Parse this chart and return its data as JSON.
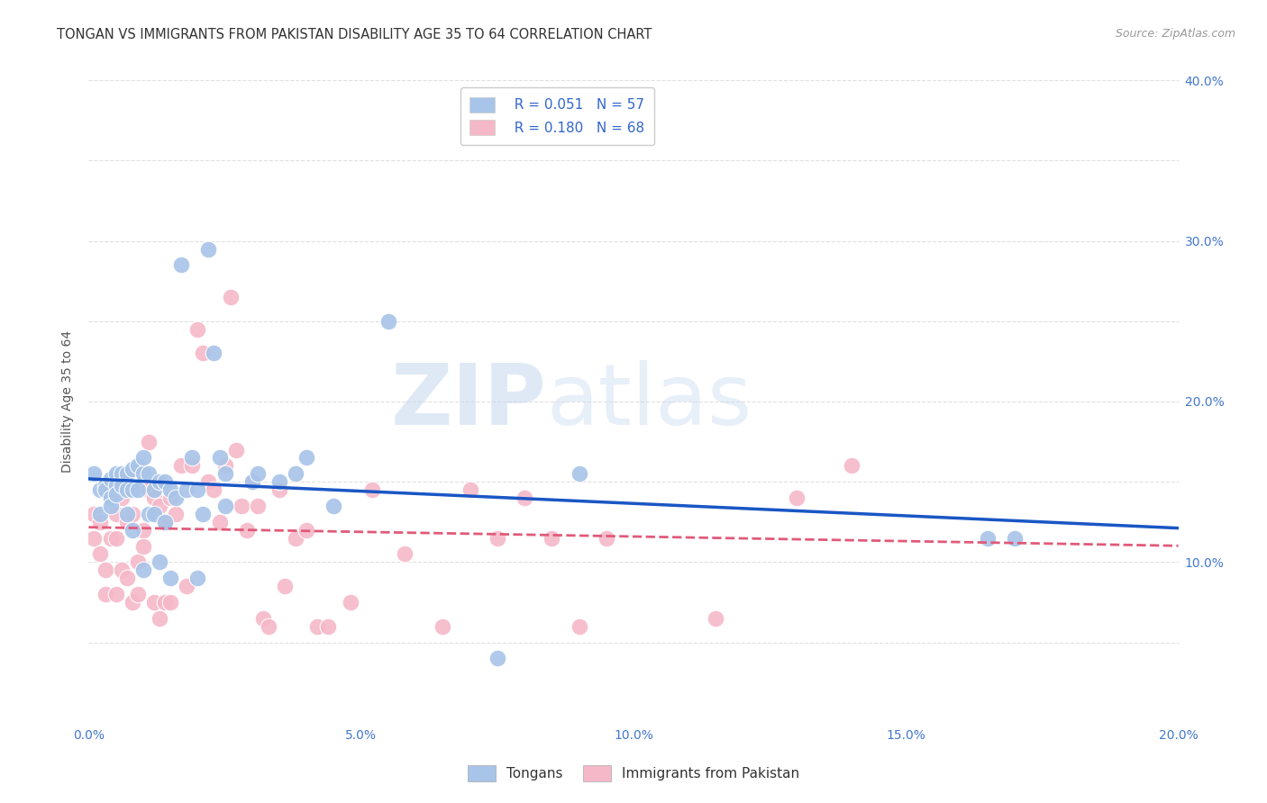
{
  "title": "TONGAN VS IMMIGRANTS FROM PAKISTAN DISABILITY AGE 35 TO 64 CORRELATION CHART",
  "source": "Source: ZipAtlas.com",
  "ylabel": "Disability Age 35 to 64",
  "xlim": [
    0.0,
    0.2
  ],
  "ylim": [
    0.0,
    0.4
  ],
  "xticks": [
    0.0,
    0.025,
    0.05,
    0.075,
    0.1,
    0.125,
    0.15,
    0.175,
    0.2
  ],
  "xtick_labels": [
    "0.0%",
    "",
    "5.0%",
    "",
    "10.0%",
    "",
    "15.0%",
    "",
    "20.0%"
  ],
  "yticks": [
    0.0,
    0.05,
    0.1,
    0.15,
    0.2,
    0.25,
    0.3,
    0.35,
    0.4
  ],
  "ytick_labels": [
    "",
    "",
    "10.0%",
    "",
    "20.0%",
    "",
    "30.0%",
    "",
    "40.0%"
  ],
  "legend_label1": "Tongans",
  "legend_label2": "Immigrants from Pakistan",
  "R1": 0.051,
  "N1": 57,
  "R2": 0.18,
  "N2": 68,
  "color_blue": "#a8c4e8",
  "color_pink": "#f5b8c8",
  "line_color_blue": "#1a56c4",
  "line_color_pink": "#e05a7a",
  "tongans_x": [
    0.001,
    0.002,
    0.002,
    0.003,
    0.003,
    0.004,
    0.004,
    0.004,
    0.005,
    0.005,
    0.005,
    0.006,
    0.006,
    0.007,
    0.007,
    0.007,
    0.008,
    0.008,
    0.008,
    0.009,
    0.009,
    0.01,
    0.01,
    0.01,
    0.011,
    0.011,
    0.012,
    0.012,
    0.013,
    0.013,
    0.014,
    0.014,
    0.015,
    0.015,
    0.016,
    0.017,
    0.018,
    0.019,
    0.02,
    0.02,
    0.021,
    0.022,
    0.023,
    0.024,
    0.025,
    0.025,
    0.03,
    0.031,
    0.035,
    0.038,
    0.04,
    0.045,
    0.055,
    0.075,
    0.09,
    0.165,
    0.17
  ],
  "tongans_y": [
    0.155,
    0.145,
    0.13,
    0.148,
    0.145,
    0.152,
    0.14,
    0.135,
    0.155,
    0.148,
    0.142,
    0.155,
    0.148,
    0.155,
    0.145,
    0.13,
    0.158,
    0.145,
    0.12,
    0.16,
    0.145,
    0.155,
    0.165,
    0.095,
    0.155,
    0.13,
    0.145,
    0.13,
    0.15,
    0.1,
    0.15,
    0.125,
    0.145,
    0.09,
    0.14,
    0.285,
    0.145,
    0.165,
    0.09,
    0.145,
    0.13,
    0.295,
    0.23,
    0.165,
    0.155,
    0.135,
    0.15,
    0.155,
    0.15,
    0.155,
    0.165,
    0.135,
    0.25,
    0.04,
    0.155,
    0.115,
    0.115
  ],
  "pakistan_x": [
    0.001,
    0.001,
    0.002,
    0.002,
    0.003,
    0.003,
    0.004,
    0.004,
    0.005,
    0.005,
    0.005,
    0.006,
    0.006,
    0.007,
    0.007,
    0.008,
    0.008,
    0.009,
    0.009,
    0.01,
    0.01,
    0.011,
    0.011,
    0.012,
    0.012,
    0.013,
    0.013,
    0.014,
    0.014,
    0.015,
    0.015,
    0.016,
    0.017,
    0.018,
    0.019,
    0.02,
    0.021,
    0.022,
    0.023,
    0.024,
    0.025,
    0.026,
    0.027,
    0.028,
    0.029,
    0.03,
    0.031,
    0.032,
    0.033,
    0.035,
    0.036,
    0.038,
    0.04,
    0.042,
    0.044,
    0.048,
    0.052,
    0.058,
    0.065,
    0.07,
    0.075,
    0.08,
    0.085,
    0.09,
    0.095,
    0.115,
    0.13,
    0.14
  ],
  "pakistan_y": [
    0.13,
    0.115,
    0.125,
    0.105,
    0.095,
    0.08,
    0.14,
    0.115,
    0.13,
    0.115,
    0.08,
    0.14,
    0.095,
    0.125,
    0.09,
    0.13,
    0.075,
    0.1,
    0.08,
    0.12,
    0.11,
    0.175,
    0.145,
    0.14,
    0.075,
    0.135,
    0.065,
    0.125,
    0.075,
    0.14,
    0.075,
    0.13,
    0.16,
    0.085,
    0.16,
    0.245,
    0.23,
    0.15,
    0.145,
    0.125,
    0.16,
    0.265,
    0.17,
    0.135,
    0.12,
    0.15,
    0.135,
    0.065,
    0.06,
    0.145,
    0.085,
    0.115,
    0.12,
    0.06,
    0.06,
    0.075,
    0.145,
    0.105,
    0.06,
    0.145,
    0.115,
    0.14,
    0.115,
    0.06,
    0.115,
    0.065,
    0.14,
    0.16
  ],
  "watermark_zip": "ZIP",
  "watermark_atlas": "atlas",
  "background_color": "#ffffff",
  "grid_color": "#e0e0e0"
}
